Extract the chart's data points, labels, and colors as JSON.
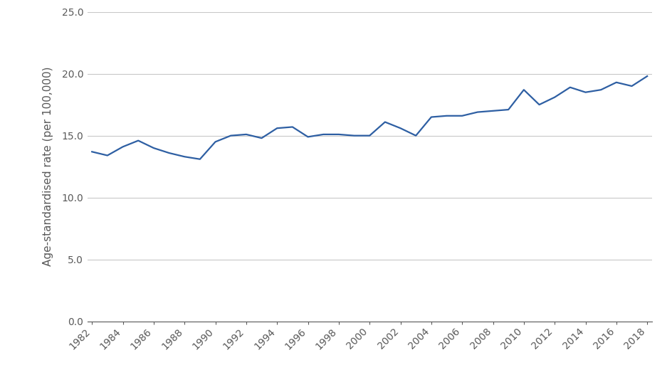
{
  "years": [
    1982,
    1983,
    1984,
    1985,
    1986,
    1987,
    1988,
    1989,
    1990,
    1991,
    1992,
    1993,
    1994,
    1995,
    1996,
    1997,
    1998,
    1999,
    2000,
    2001,
    2002,
    2003,
    2004,
    2005,
    2006,
    2007,
    2008,
    2009,
    2010,
    2011,
    2012,
    2013,
    2014,
    2015,
    2016,
    2017,
    2018
  ],
  "values": [
    13.7,
    13.4,
    14.1,
    14.6,
    14.0,
    13.6,
    13.3,
    13.1,
    14.5,
    15.0,
    15.1,
    14.8,
    15.6,
    15.7,
    14.9,
    15.1,
    15.1,
    15.0,
    15.0,
    16.1,
    15.6,
    15.0,
    16.5,
    16.6,
    16.6,
    16.9,
    17.0,
    17.1,
    18.7,
    17.5,
    18.1,
    18.9,
    18.5,
    18.7,
    19.3,
    19.0,
    19.8
  ],
  "line_color": "#2e5fa3",
  "line_width": 1.6,
  "ylabel": "Age-standardised rate (per 100,000)",
  "ylim": [
    0,
    25
  ],
  "yticks": [
    0.0,
    5.0,
    10.0,
    15.0,
    20.0,
    25.0
  ],
  "xtick_step": 2,
  "grid_color": "#c8c8c8",
  "background_color": "#ffffff",
  "tick_fontsize": 10,
  "label_fontsize": 11,
  "tick_color": "#595959",
  "spine_color": "#595959"
}
